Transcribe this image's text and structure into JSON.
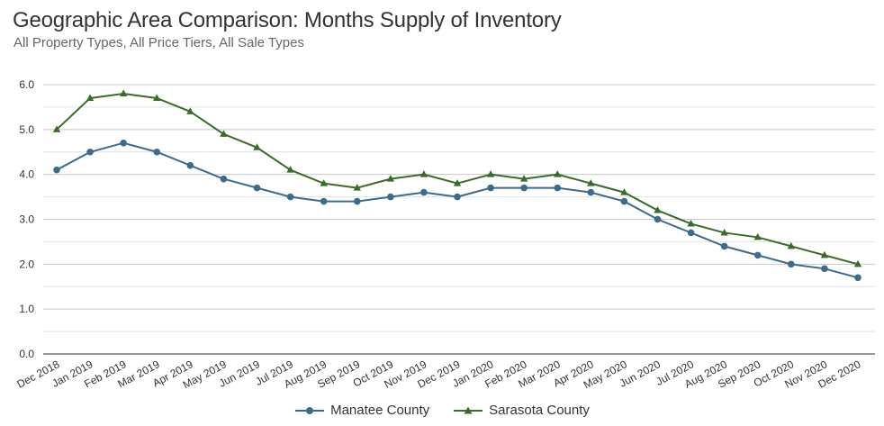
{
  "header": {
    "title": "Geographic Area Comparison: Months Supply of Inventory",
    "subtitle": "All Property Types, All Price Tiers, All Sale Types"
  },
  "chart_data": {
    "type": "line",
    "title": "Geographic Area Comparison: Months Supply of Inventory",
    "subtitle": "All Property Types, All Price Tiers, All Sale Types",
    "xlabel": "",
    "ylabel": "",
    "ylim": [
      0,
      6
    ],
    "yticks": [
      "0.0",
      "1.0",
      "2.0",
      "3.0",
      "4.0",
      "5.0",
      "6.0"
    ],
    "grid": true,
    "legend_position": "bottom",
    "categories": [
      "Dec 2018",
      "Jan 2019",
      "Feb 2019",
      "Mar 2019",
      "Apr 2019",
      "May 2019",
      "Jun 2019",
      "Jul 2019",
      "Aug 2019",
      "Sep 2019",
      "Oct 2019",
      "Nov 2019",
      "Dec 2019",
      "Jan 2020",
      "Feb 2020",
      "Mar 2020",
      "Apr 2020",
      "May 2020",
      "Jun 2020",
      "Jul 2020",
      "Aug 2020",
      "Sep 2020",
      "Oct 2020",
      "Nov 2020",
      "Dec 2020"
    ],
    "series": [
      {
        "name": "Manatee County",
        "color": "#3d6b8c",
        "marker": "circle",
        "values": [
          4.1,
          4.5,
          4.7,
          4.5,
          4.2,
          3.9,
          3.7,
          3.5,
          3.4,
          3.4,
          3.5,
          3.6,
          3.5,
          3.7,
          3.7,
          3.7,
          3.6,
          3.4,
          3.0,
          2.7,
          2.4,
          2.2,
          2.0,
          1.9,
          1.7
        ]
      },
      {
        "name": "Sarasota County",
        "color": "#3b6b2a",
        "marker": "triangle",
        "values": [
          5.0,
          5.7,
          5.8,
          5.7,
          5.4,
          4.9,
          4.6,
          4.1,
          3.8,
          3.7,
          3.9,
          4.0,
          3.8,
          4.0,
          3.9,
          4.0,
          3.8,
          3.6,
          3.2,
          2.9,
          2.7,
          2.6,
          2.4,
          2.2,
          2.0
        ]
      }
    ]
  }
}
